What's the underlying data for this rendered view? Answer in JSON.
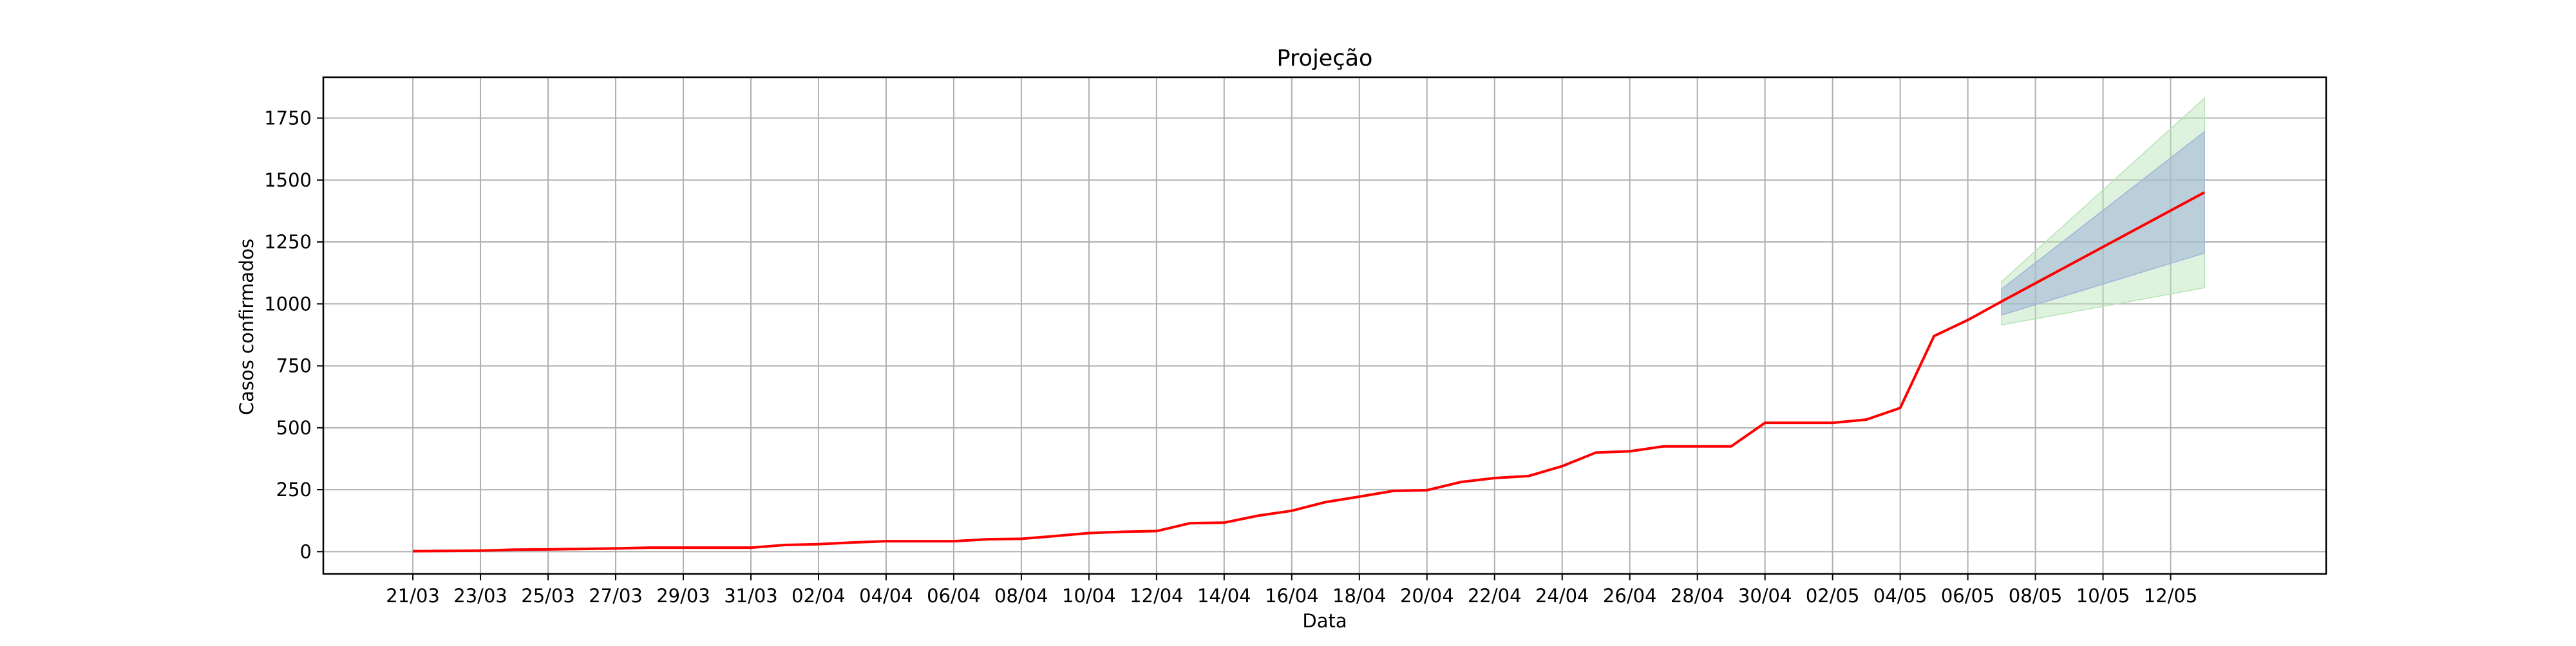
{
  "chart_data": {
    "type": "line",
    "title": "Projeção",
    "xlabel": "Data",
    "ylabel": "Casos confirmados",
    "grid": true,
    "x_tick_labels": [
      "21/03",
      "23/03",
      "25/03",
      "27/03",
      "29/03",
      "31/03",
      "02/04",
      "04/04",
      "06/04",
      "08/04",
      "10/04",
      "12/04",
      "14/04",
      "16/04",
      "18/04",
      "20/04",
      "22/04",
      "24/04",
      "26/04",
      "28/04",
      "30/04",
      "02/05",
      "04/05",
      "06/05",
      "08/05",
      "10/05",
      "12/05"
    ],
    "y_ticks": [
      0,
      250,
      500,
      750,
      1000,
      1250,
      1500,
      1750
    ],
    "ylim": [
      -90,
      1915
    ],
    "xlim_days": [
      -2.65,
      56.6
    ],
    "colors": {
      "observed_line": "#ff0000",
      "projection_line": "#ff0000",
      "inner_band": "#9fb3d9",
      "outer_band": "#b5e3b5",
      "grid": "#b0b0b0"
    },
    "series": [
      {
        "x": [
          "21/03",
          "22/03",
          "23/03",
          "24/03",
          "25/03",
          "26/03",
          "27/03",
          "28/03",
          "29/03",
          "30/03",
          "31/03",
          "01/04",
          "02/04",
          "03/04",
          "04/04",
          "05/04",
          "06/04",
          "07/04",
          "08/04",
          "09/04",
          "10/04",
          "11/04",
          "12/04",
          "13/04",
          "14/04",
          "15/04",
          "16/04",
          "17/04",
          "18/04",
          "19/04",
          "20/04",
          "21/04",
          "22/04",
          "23/04",
          "24/04",
          "25/04",
          "26/04",
          "27/04",
          "28/04",
          "29/04",
          "30/04",
          "01/05",
          "02/05",
          "03/05",
          "04/05",
          "05/05",
          "06/05",
          "07/05"
        ],
        "values": [
          2,
          3,
          4,
          8,
          9,
          11,
          13,
          16,
          16,
          16,
          16,
          27,
          30,
          37,
          42,
          42,
          42,
          50,
          52,
          63,
          75,
          80,
          83,
          115,
          117,
          145,
          165,
          200,
          222,
          245,
          248,
          281,
          297,
          305,
          345,
          400,
          405,
          425,
          425,
          425,
          520,
          520,
          520,
          533,
          580,
          870,
          935,
          1010
        ]
      },
      {
        "x": [
          "07/05",
          "13/05"
        ],
        "values": [
          1010,
          1450
        ]
      }
    ],
    "bands": [
      {
        "x": [
          "07/05",
          "13/05"
        ],
        "lower": [
          915,
          1065
        ],
        "upper": [
          1090,
          1830
        ]
      },
      {
        "x": [
          "07/05",
          "13/05"
        ],
        "lower": [
          955,
          1205
        ],
        "upper": [
          1060,
          1695
        ]
      }
    ]
  }
}
